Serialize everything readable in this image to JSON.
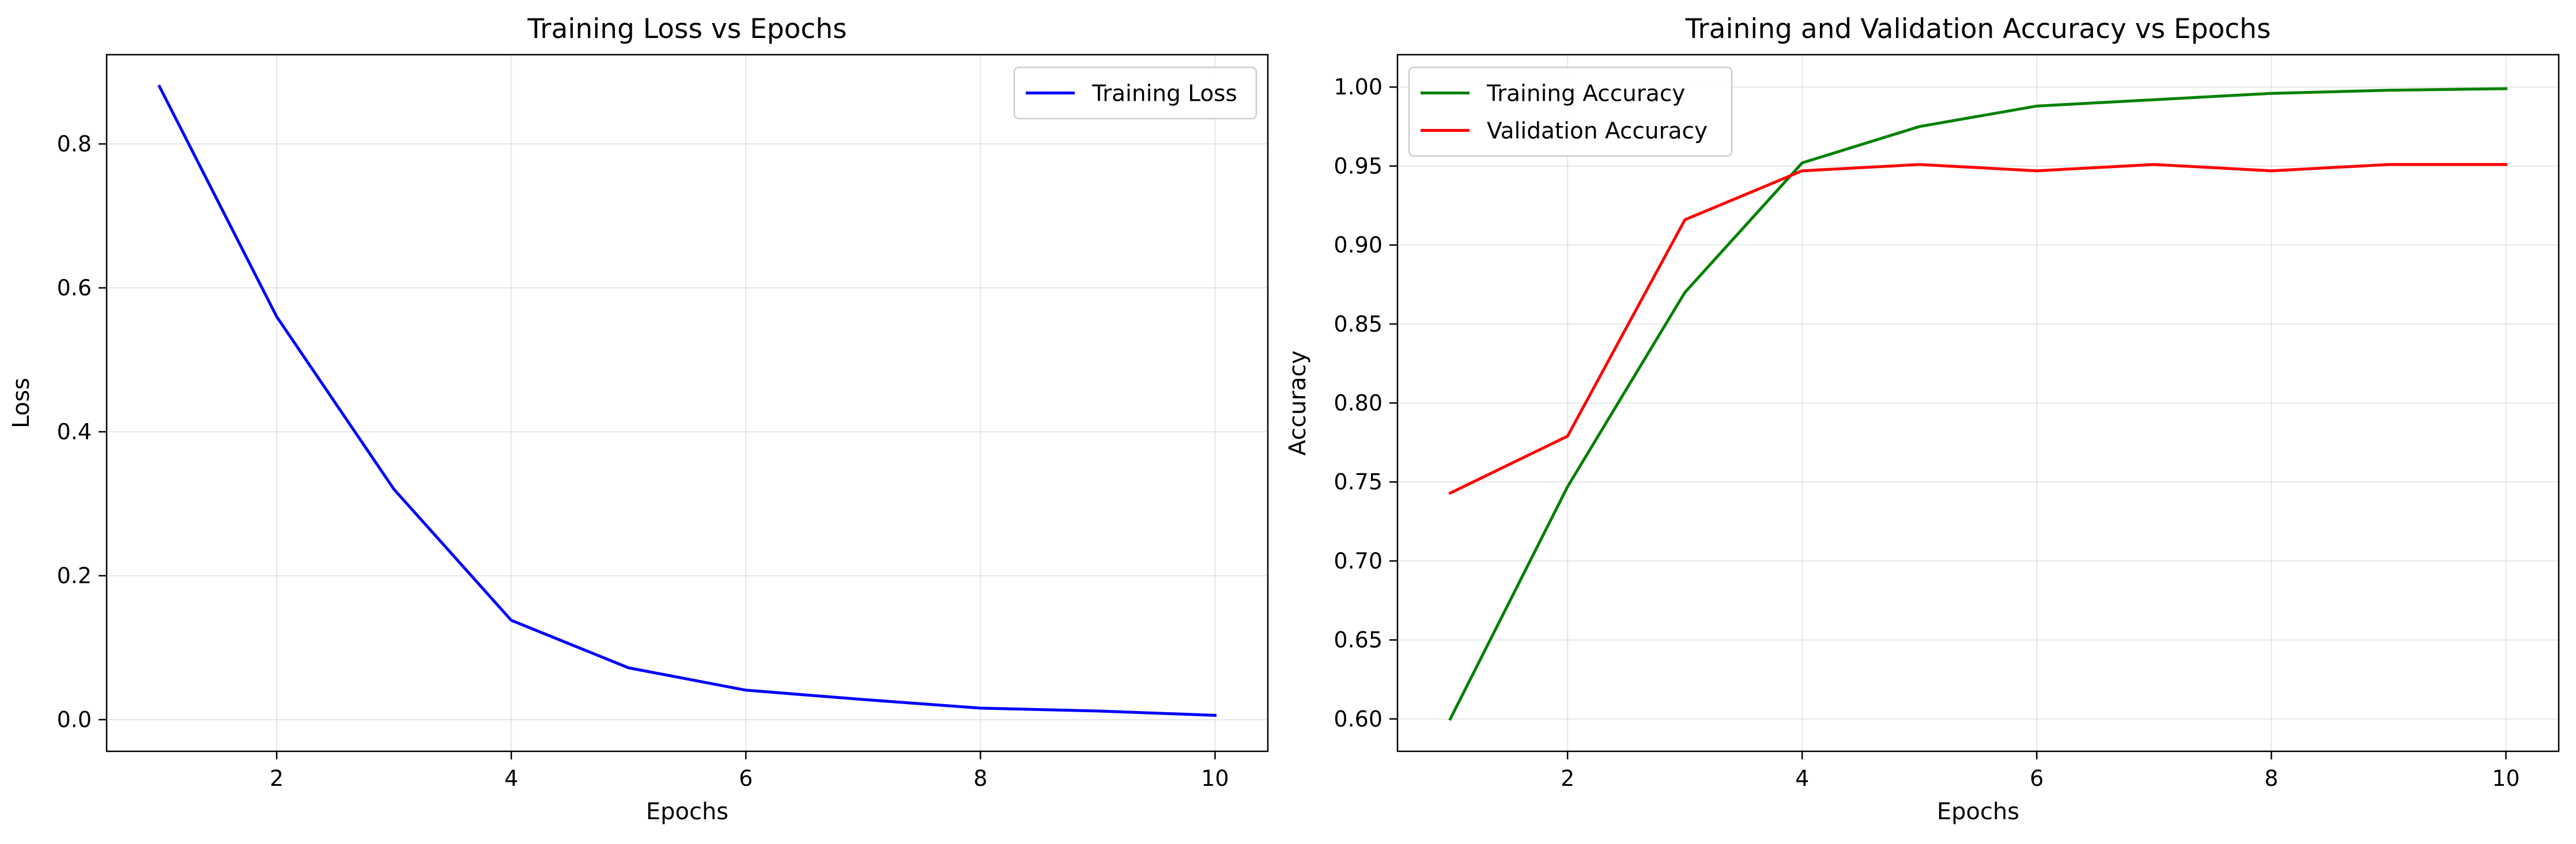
{
  "chart_data": [
    {
      "type": "line",
      "title": "Training Loss vs Epochs",
      "xlabel": "Epochs",
      "ylabel": "Loss",
      "xlim": [
        0.55,
        10.45
      ],
      "ylim": [
        -0.044,
        0.924
      ],
      "xticks": [
        2,
        4,
        6,
        8,
        10
      ],
      "yticks": [
        0.0,
        0.2,
        0.4,
        0.6,
        0.8
      ],
      "ytick_labels": [
        "0.0",
        "0.2",
        "0.4",
        "0.6",
        "0.8"
      ],
      "grid": true,
      "legend": "upper right",
      "x": [
        1,
        2,
        3,
        4,
        5,
        6,
        7,
        8,
        9,
        10
      ],
      "series": [
        {
          "name": "Training Loss",
          "color": "#0000ff",
          "values": [
            0.88,
            0.56,
            0.32,
            0.138,
            0.072,
            0.041,
            0.028,
            0.016,
            0.012,
            0.006
          ]
        }
      ]
    },
    {
      "type": "line",
      "title": "Training and Validation Accuracy vs Epochs",
      "xlabel": "Epochs",
      "ylabel": "Accuracy",
      "xlim": [
        0.55,
        10.45
      ],
      "ylim": [
        0.5795,
        1.0205
      ],
      "xticks": [
        2,
        4,
        6,
        8,
        10
      ],
      "yticks": [
        0.6,
        0.65,
        0.7,
        0.75,
        0.8,
        0.85,
        0.9,
        0.95,
        1.0
      ],
      "ytick_labels": [
        "0.60",
        "0.65",
        "0.70",
        "0.75",
        "0.80",
        "0.85",
        "0.90",
        "0.95",
        "1.00"
      ],
      "grid": true,
      "legend": "upper left",
      "x": [
        1,
        2,
        3,
        4,
        5,
        6,
        7,
        8,
        9,
        10
      ],
      "series": [
        {
          "name": "Training Accuracy",
          "color": "#008000",
          "values": [
            0.6,
            0.747,
            0.87,
            0.952,
            0.975,
            0.988,
            0.992,
            0.996,
            0.998,
            0.999
          ]
        },
        {
          "name": "Validation Accuracy",
          "color": "#ff0000",
          "values": [
            0.743,
            0.779,
            0.916,
            0.947,
            0.951,
            0.947,
            0.951,
            0.947,
            0.951,
            0.951
          ]
        }
      ]
    }
  ]
}
